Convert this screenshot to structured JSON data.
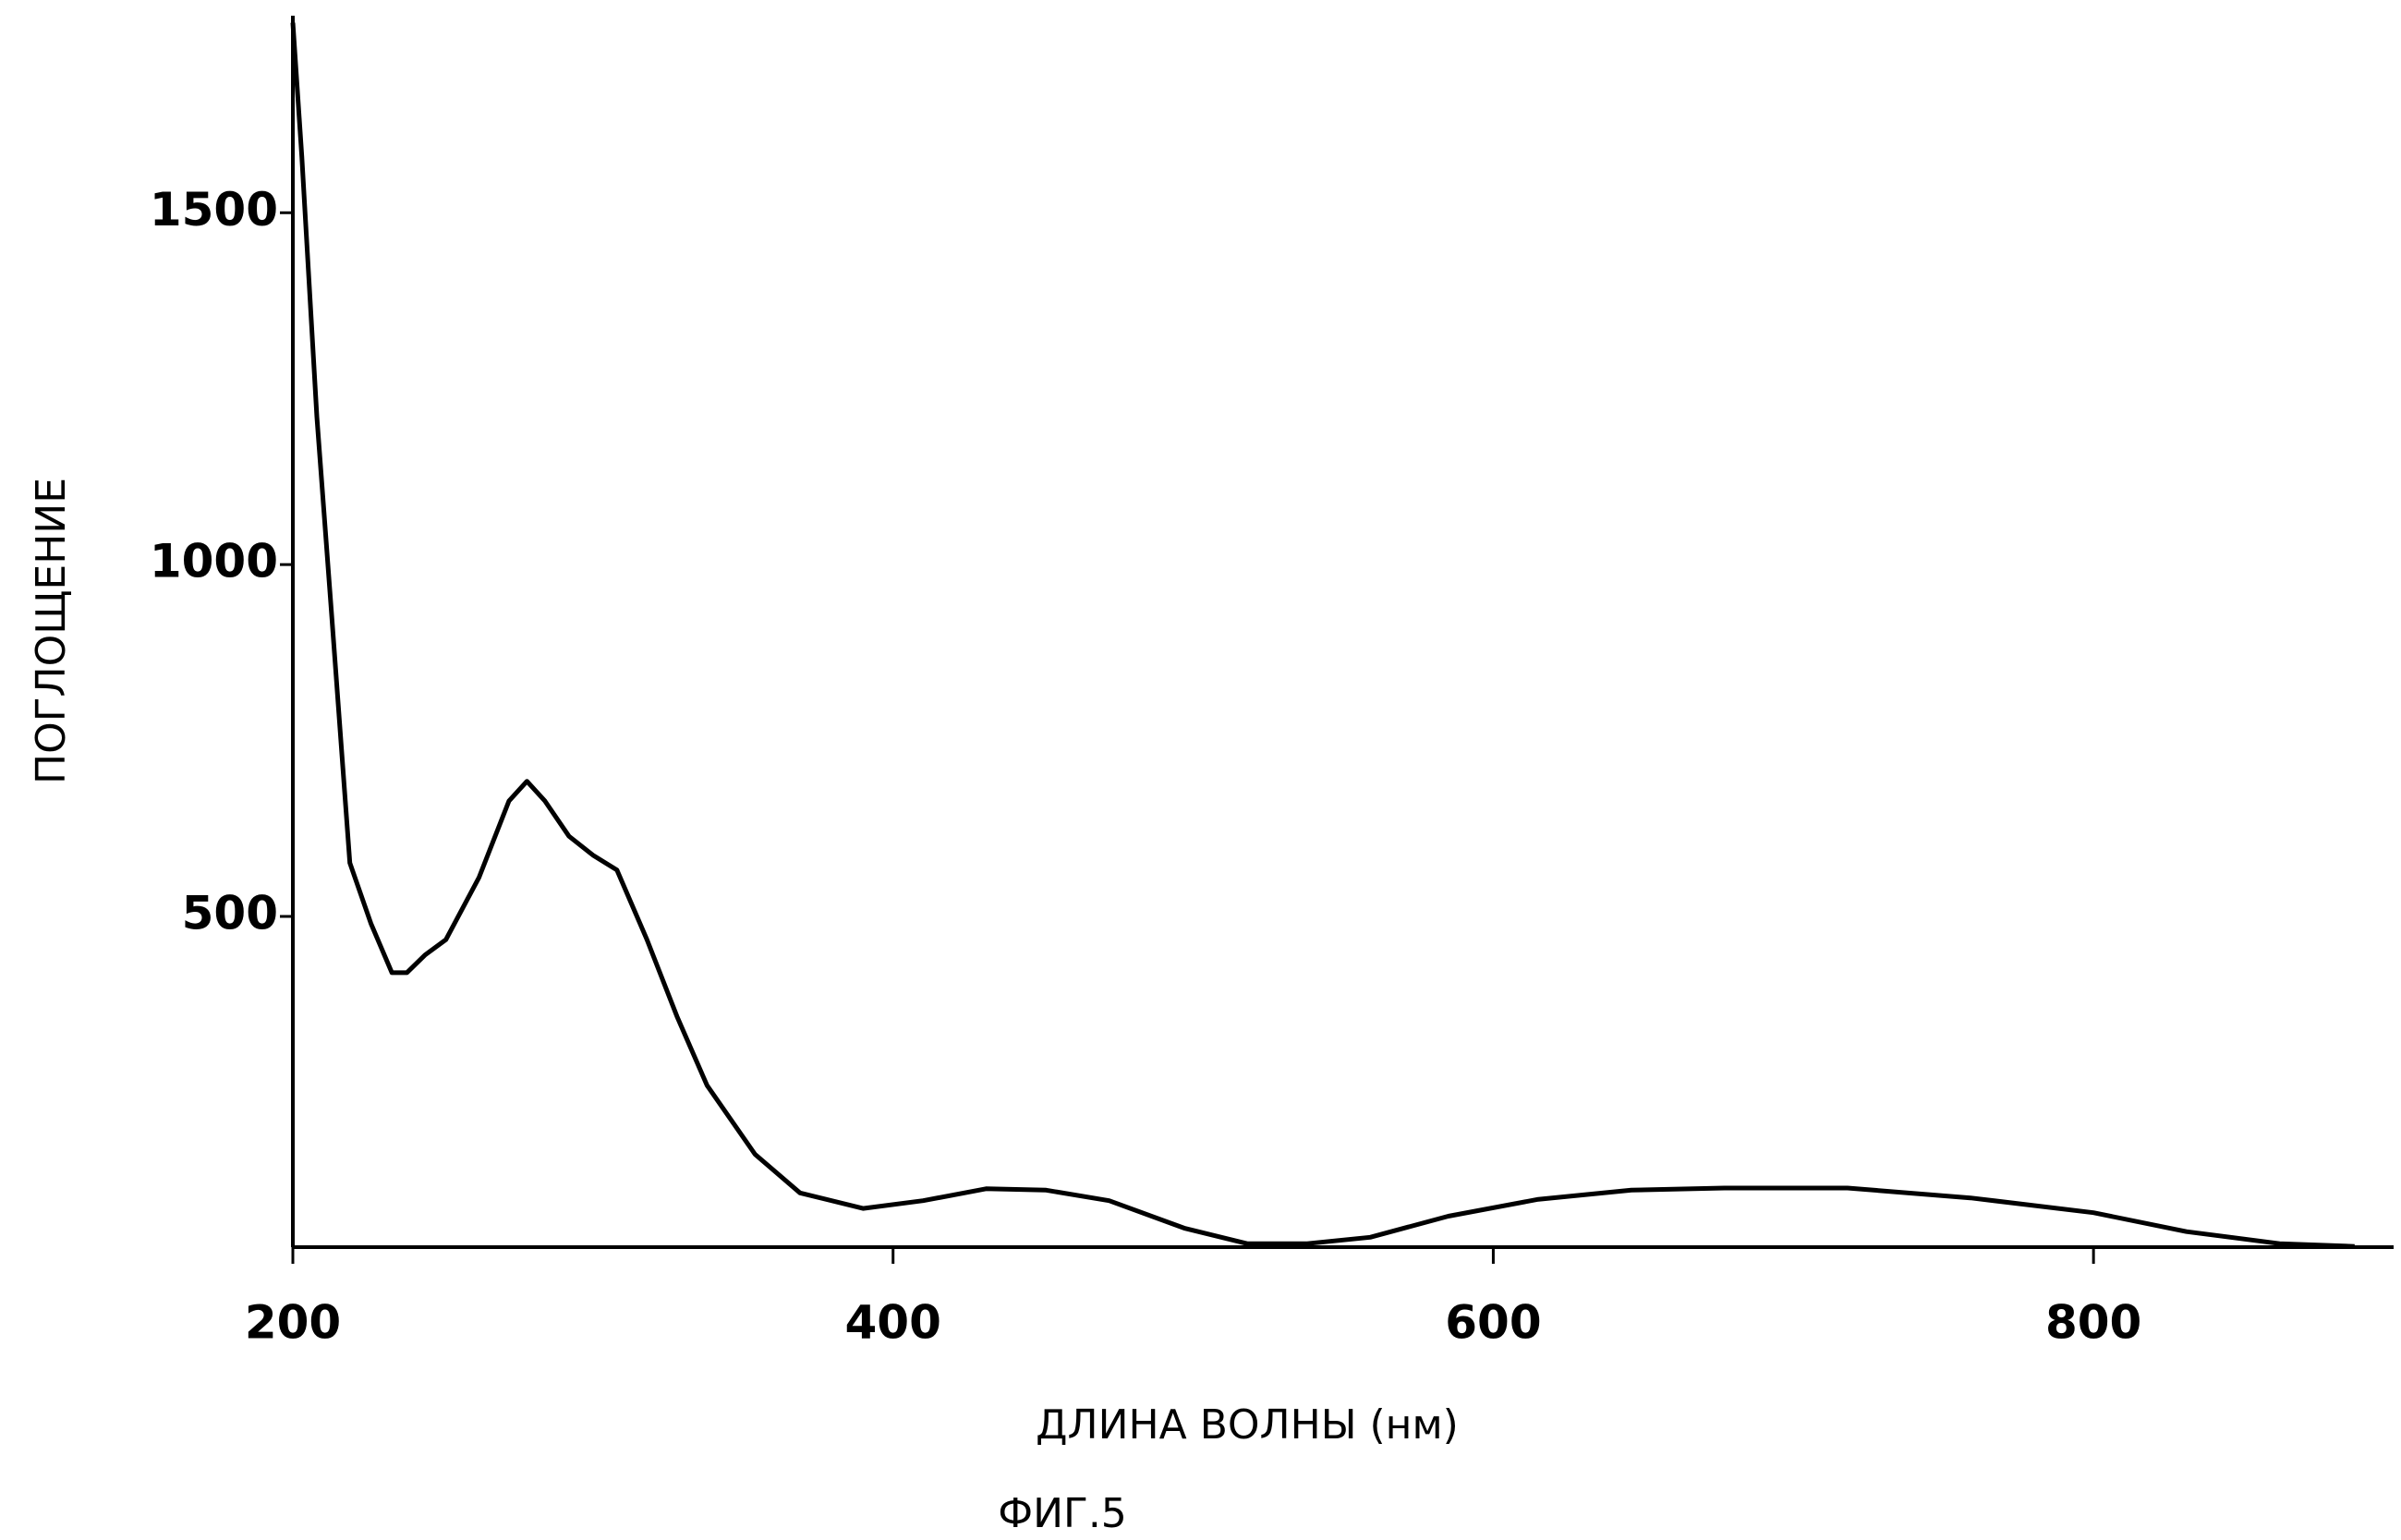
{
  "chart_data": {
    "type": "line",
    "x_label": "ДЛИНА ВОЛНЫ (нм)",
    "y_label": "ПОГЛОЩЕНИЕ",
    "caption": "ФИГ.5",
    "x": [
      200,
      203,
      208,
      213,
      219,
      226,
      233,
      238,
      244,
      251,
      262,
      272,
      278,
      284,
      292,
      300,
      308,
      318,
      328,
      338,
      354,
      369,
      390,
      410,
      431,
      451,
      472,
      497,
      518,
      538,
      559,
      585,
      615,
      646,
      677,
      718,
      759,
      800,
      831,
      862,
      887
    ],
    "series": [
      {
        "color": "#000000",
        "values": [
          1770,
          1580,
          1210,
          925,
          576,
          490,
          420,
          420,
          445,
          467,
          555,
          664,
          692,
          664,
          614,
          587,
          566,
          467,
          358,
          260,
          162,
          107,
          85,
          96,
          113,
          111,
          96,
          57,
          35,
          35,
          44,
          74,
          98,
          111,
          114,
          114,
          100,
          79,
          52,
          35,
          31
        ]
      }
    ],
    "xlim": [
      200,
      900
    ],
    "xticks": [
      200,
      400,
      600,
      800
    ],
    "ylim": [
      30,
      1780
    ],
    "yticks": [
      500,
      1000,
      1500
    ],
    "grid": false
  }
}
